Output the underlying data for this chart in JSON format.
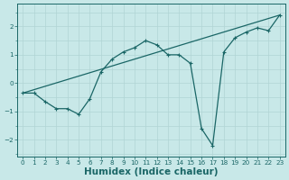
{
  "xlabel": "Humidex (Indice chaleur)",
  "bg_color": "#c8e8e8",
  "line_color": "#1a6666",
  "grid_color": "#b0d4d4",
  "xlim": [
    -0.5,
    23.5
  ],
  "ylim": [
    -2.6,
    2.8
  ],
  "xticks": [
    0,
    1,
    2,
    3,
    4,
    5,
    6,
    7,
    8,
    9,
    10,
    11,
    12,
    13,
    14,
    15,
    16,
    17,
    18,
    19,
    20,
    21,
    22,
    23
  ],
  "yticks": [
    -2,
    -1,
    0,
    1,
    2
  ],
  "curve1_x": [
    0,
    1,
    2,
    3,
    4,
    5,
    6,
    7,
    8,
    9,
    10,
    11,
    12,
    13,
    14,
    15,
    16,
    17,
    18,
    19,
    20,
    21,
    22,
    23
  ],
  "curve1_y": [
    -0.35,
    -0.35,
    -0.65,
    -0.9,
    -0.9,
    -1.1,
    -0.55,
    0.4,
    0.85,
    1.1,
    1.25,
    1.5,
    1.35,
    1.0,
    1.0,
    0.7,
    -1.6,
    -2.2,
    1.1,
    1.6,
    1.8,
    1.95,
    1.85,
    2.4
  ],
  "curve2_x": [
    0,
    23
  ],
  "curve2_y": [
    -0.35,
    2.4
  ],
  "marker_size": 3,
  "linewidth": 0.9,
  "tick_fontsize": 5.2,
  "xlabel_fontsize": 7.5,
  "xlabel_fontweight": "bold"
}
